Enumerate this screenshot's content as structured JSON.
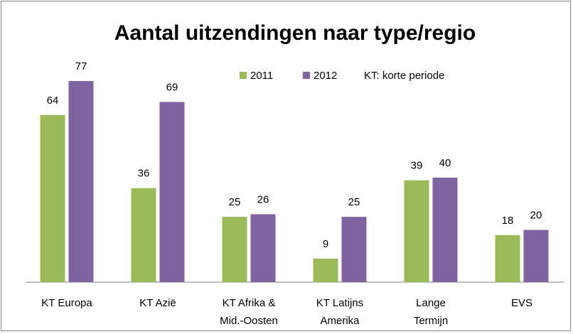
{
  "chart_data": {
    "type": "bar",
    "title": "Aantal uitzendingen naar type/regio",
    "annotation": "KT: korte periode",
    "categories": [
      [
        "KT Europa"
      ],
      [
        "KT Azië"
      ],
      [
        "KT Afrika &",
        "Mid.-Oosten"
      ],
      [
        "KT Latijns",
        "Amerika"
      ],
      [
        "Lange",
        "Termijn"
      ],
      [
        "EVS"
      ]
    ],
    "series": [
      {
        "name": "2011",
        "color": "#9bbb59",
        "values": [
          64,
          36,
          25,
          9,
          39,
          18
        ]
      },
      {
        "name": "2012",
        "color": "#8064a2",
        "values": [
          77,
          69,
          26,
          25,
          40,
          20
        ]
      }
    ],
    "ylim": [
      0,
      85
    ]
  }
}
